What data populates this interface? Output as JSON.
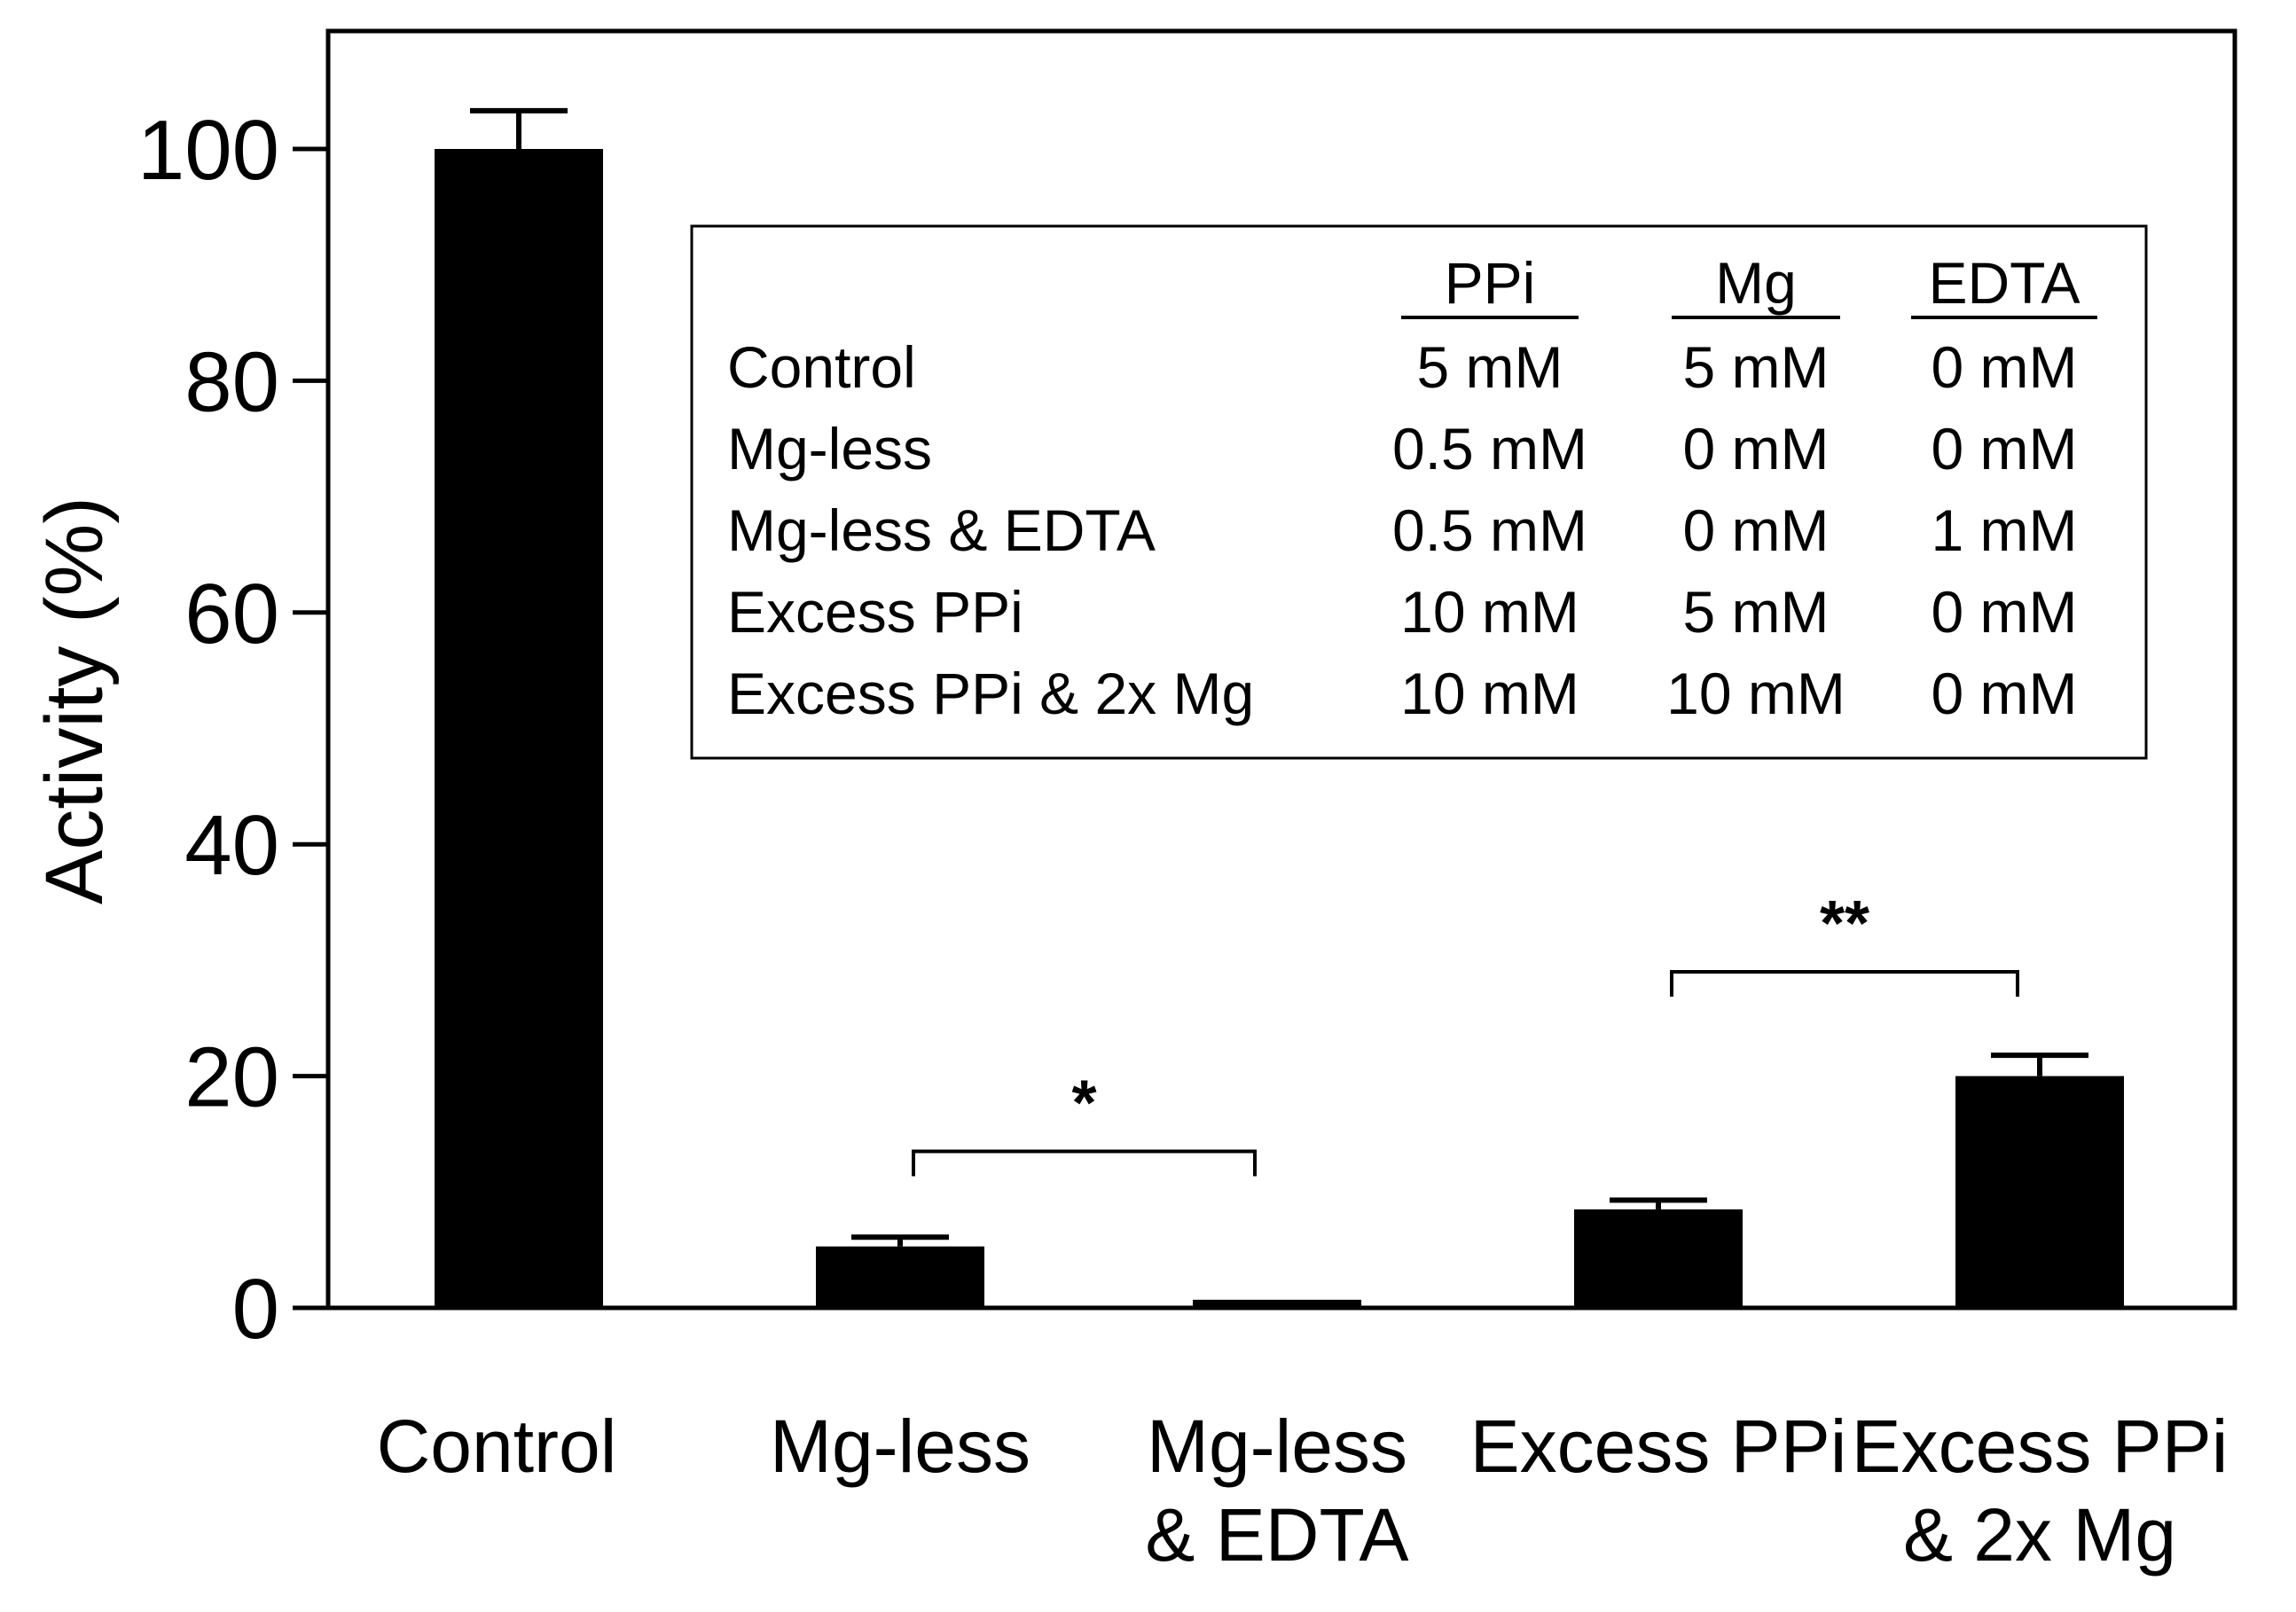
{
  "chart_data": {
    "type": "bar",
    "title": "",
    "xlabel": "",
    "ylabel": "Activity (%)",
    "ylim": [
      0,
      110
    ],
    "yticks": [
      0,
      20,
      40,
      60,
      80,
      100
    ],
    "grid": false,
    "categories": [
      [
        "Control"
      ],
      [
        "Mg-less"
      ],
      [
        "Mg-less",
        "& EDTA"
      ],
      [
        "Excess PPi"
      ],
      [
        "Excess PPi",
        "& 2x Mg"
      ]
    ],
    "values": [
      100,
      5.3,
      0.7,
      8.5,
      20.0
    ],
    "errors": [
      3.3,
      0.8,
      0,
      0.8,
      1.8
    ],
    "bar_color": "#000000",
    "significance": [
      {
        "from": 1,
        "to": 2,
        "label": "*",
        "y": 13.5
      },
      {
        "from": 3,
        "to": 4,
        "label": "**",
        "y": 29
      }
    ],
    "inset_table": {
      "columns": [
        "PPi",
        "Mg",
        "EDTA"
      ],
      "rows": [
        {
          "label": "Control",
          "values": [
            "5 mM",
            "5 mM",
            "0 mM"
          ]
        },
        {
          "label": "Mg-less",
          "values": [
            "0.5 mM",
            "0 mM",
            "0 mM"
          ]
        },
        {
          "label": "Mg-less & EDTA",
          "values": [
            "0.5 mM",
            "0 mM",
            "1 mM"
          ]
        },
        {
          "label": "Excess PPi",
          "values": [
            "10 mM",
            "5 mM",
            "0 mM"
          ]
        },
        {
          "label": "Excess PPi & 2x Mg",
          "values": [
            "10 mM",
            "10 mM",
            "0 mM"
          ]
        }
      ]
    }
  }
}
